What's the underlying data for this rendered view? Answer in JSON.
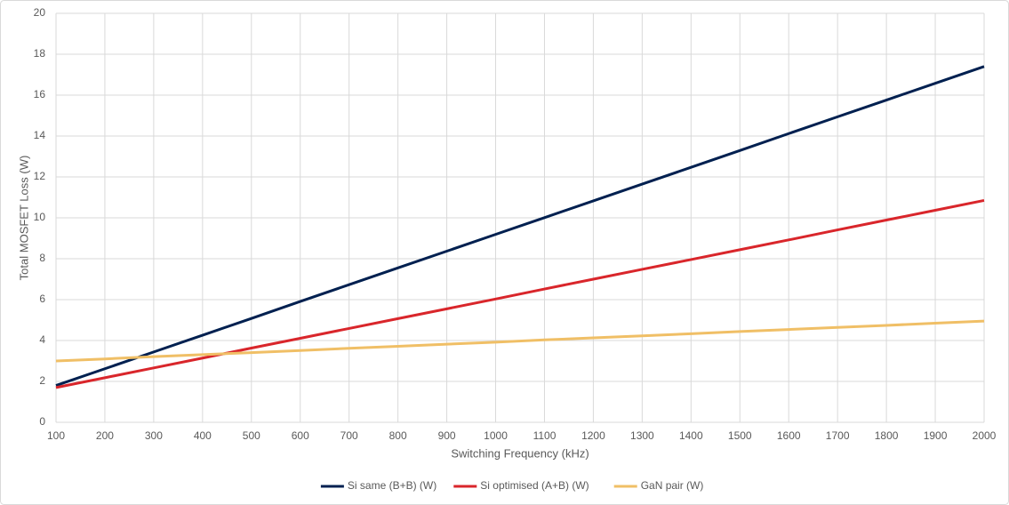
{
  "chart_data": {
    "type": "line",
    "x_label": "Switching Frequency (kHz)",
    "y_label": "Total MOSFET Loss (W)",
    "x": [
      100,
      200,
      300,
      400,
      500,
      600,
      700,
      800,
      900,
      1000,
      1100,
      1200,
      1300,
      1400,
      1500,
      1600,
      1700,
      1800,
      1900,
      2000
    ],
    "series": [
      {
        "name": "Si same (B+B) (W)",
        "color": "#002050",
        "values": [
          1.8,
          2.62,
          3.44,
          4.26,
          5.08,
          5.91,
          6.73,
          7.55,
          8.37,
          9.19,
          10.01,
          10.83,
          11.65,
          12.47,
          13.29,
          14.12,
          14.94,
          15.76,
          16.58,
          17.4
        ]
      },
      {
        "name": "Si optimised (A+B) (W)",
        "color": "#d9262b",
        "values": [
          1.7,
          2.18,
          2.66,
          3.14,
          3.63,
          4.11,
          4.59,
          5.07,
          5.55,
          6.03,
          6.52,
          7.0,
          7.48,
          7.96,
          8.44,
          8.92,
          9.41,
          9.89,
          10.37,
          10.85
        ]
      },
      {
        "name": "GaN pair (W)",
        "color": "#f0bf66",
        "values": [
          3.0,
          3.1,
          3.21,
          3.31,
          3.41,
          3.51,
          3.62,
          3.72,
          3.82,
          3.92,
          4.03,
          4.13,
          4.23,
          4.33,
          4.44,
          4.54,
          4.64,
          4.74,
          4.85,
          4.95
        ]
      }
    ],
    "xlim": [
      100,
      2000
    ],
    "xticks": [
      100,
      200,
      300,
      400,
      500,
      600,
      700,
      800,
      900,
      1000,
      1100,
      1200,
      1300,
      1400,
      1500,
      1600,
      1700,
      1800,
      1900,
      2000
    ],
    "ylim": [
      0,
      20
    ],
    "yticks": [
      0,
      2,
      4,
      6,
      8,
      10,
      12,
      14,
      16,
      18,
      20
    ],
    "grid": true,
    "legend": "bottom"
  }
}
